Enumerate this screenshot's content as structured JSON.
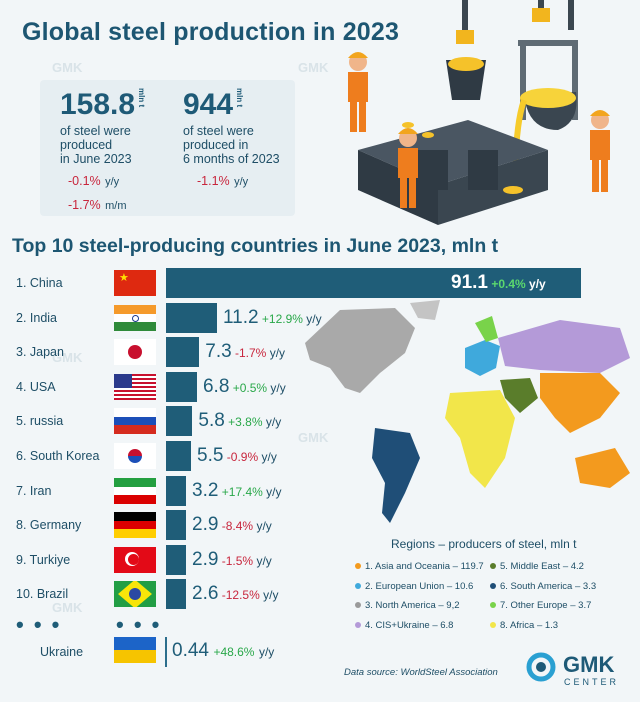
{
  "header": {
    "title": "Global steel production in 2023"
  },
  "stats": {
    "june": {
      "value": "158.8",
      "unit": "mln t",
      "desc": [
        "of steel were",
        "produced",
        "in June 2023"
      ],
      "yy": "-0.1%",
      "yy_suffix": "y/y",
      "mm": "-1.7%",
      "mm_suffix": "m/m"
    },
    "half": {
      "value": "944",
      "unit": "mln t",
      "desc": [
        "of steel were",
        "produced in",
        "6 months of 2023"
      ],
      "yy": "-1.1%",
      "yy_suffix": "y/y"
    }
  },
  "watermark": "GMK",
  "chart_data": {
    "type": "bar",
    "title": "Top 10 steel-producing countries in June 2023, mln t",
    "unit": "mln t",
    "categories": [
      "China",
      "India",
      "Japan",
      "USA",
      "russia",
      "South Korea",
      "Iran",
      "Germany",
      "Turkiye",
      "Brazil"
    ],
    "rank_labels": [
      "1. China",
      "2. India",
      "3. Japan",
      "4. USA",
      "5. russia",
      "6. South Korea",
      "7. Iran",
      "8. Germany",
      "9. Turkiye",
      "10. Brazil"
    ],
    "values": [
      91.1,
      11.2,
      7.3,
      6.8,
      5.8,
      5.5,
      3.2,
      2.9,
      2.9,
      2.6
    ],
    "value_labels": [
      "91.1",
      "11.2",
      "7.3",
      "6.8",
      "5.8",
      "5.5",
      "3.2",
      "2.9",
      "2.9",
      "2.6"
    ],
    "changes": [
      "+0.4%",
      "+12.9%",
      "-1.7%",
      "+0.5%",
      "+3.8%",
      "-0.9%",
      "+17.4%",
      "-8.4%",
      "-1.5%",
      "-12.5%"
    ],
    "change_suffix": "y/y",
    "extra": {
      "label": "Ukraine",
      "value": 0.44,
      "value_label": "0.44",
      "change": "+48.6%"
    },
    "ellipsis": "• • •"
  },
  "regions": {
    "title": "Regions  – producers of steel, mln t",
    "items": [
      {
        "label": "1. Asia and Oceania – 119.7",
        "color": "#f39a1e"
      },
      {
        "label": "5. Middle East – 4.2",
        "color": "#5a7d2b"
      },
      {
        "label": "2. European Union – 10.6",
        "color": "#3fa9dc"
      },
      {
        "label": "6. South America – 3.3",
        "color": "#1f4e77"
      },
      {
        "label": "3. North America – 9,2",
        "color": "#9a9a9a"
      },
      {
        "label": "7. Other Europe – 3.7",
        "color": "#79d34a"
      },
      {
        "label": "4. CIS+Ukraine – 6.8",
        "color": "#b49ad8"
      },
      {
        "label": "8. Africa – 1.3",
        "color": "#f2e64a"
      }
    ]
  },
  "footer": {
    "source": "Data source: WorldSteel Association",
    "logo": "GMK",
    "logo_sub": "CENTER"
  }
}
